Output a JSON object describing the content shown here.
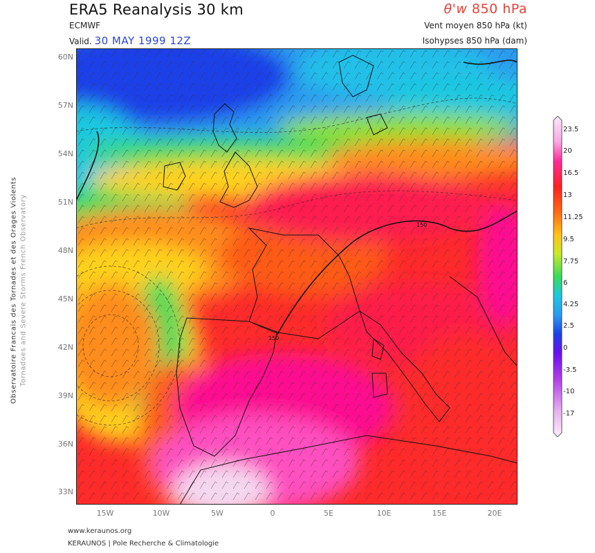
{
  "header": {
    "title": "ERA5 Reanalysis 30 km",
    "source": "ECMWF",
    "valid_prefix": "Valid.",
    "valid_date": "30 MAY 1999 12Z",
    "param_symbol": "θ'w",
    "param_level": "850 hPa",
    "wind_label": "Vent moyen 850 hPa (kt)",
    "isohypses_label": "Isohypses 850 hPa (dam)"
  },
  "side_text": {
    "line1": "Observatoire Francais des Tornades et des Orages Violents",
    "line2": "Tornadoes and Severe Storms French Observatory"
  },
  "map": {
    "lat_labels": [
      "60N",
      "57N",
      "54N",
      "51N",
      "48N",
      "45N",
      "42N",
      "39N",
      "36N",
      "33N"
    ],
    "lon_labels": [
      "15W",
      "10W",
      "5W",
      "0",
      "5E",
      "10E",
      "15E",
      "20E"
    ],
    "contour_labels": [
      "150",
      "150"
    ]
  },
  "colorbar": {
    "labels": [
      "23.5",
      "20",
      "16.5",
      "13",
      "11.25",
      "9.5",
      "7.75",
      "6",
      "4.25",
      "2.5",
      "0",
      "-3.5",
      "-10",
      "-17"
    ],
    "colors": {
      "lavender": "#f4d8f0",
      "pink": "#ff4fc0",
      "magenta": "#ff1090",
      "red": "#ff2a2a",
      "orange_red": "#ff5a18",
      "orange": "#ff8c1a",
      "yellow": "#ffd21a",
      "lime": "#90e030",
      "green": "#3adc5a",
      "cyan": "#1ec8e0",
      "sky": "#2a9cf0",
      "blue": "#1e40e8",
      "violet": "#6a10f0",
      "purple": "#b040e8"
    }
  },
  "footer": {
    "url": "www.keraunos.org",
    "credit": "KERAUNOS | Pole Recherche & Climatologie"
  }
}
